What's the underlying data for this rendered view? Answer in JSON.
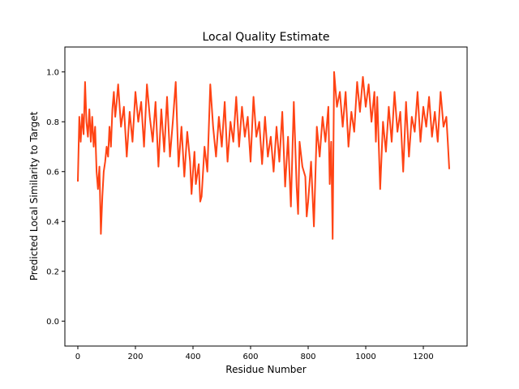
{
  "chart_data": {
    "type": "line",
    "title": "Local Quality Estimate",
    "xlabel": "Residue Number",
    "ylabel": "Predicted Local Similarity to Target",
    "xlim": [
      -45,
      1352
    ],
    "ylim": [
      -0.1,
      1.1
    ],
    "xticks": [
      0,
      200,
      400,
      600,
      800,
      1000,
      1200
    ],
    "yticks": [
      0.0,
      0.2,
      0.4,
      0.6,
      0.8,
      1.0
    ],
    "xtick_labels": [
      "0",
      "200",
      "400",
      "600",
      "800",
      "1000",
      "1200"
    ],
    "ytick_labels": [
      "0.0",
      "0.2",
      "0.4",
      "0.6",
      "0.8",
      "1.0"
    ],
    "grid": false,
    "legend": "none",
    "series": [
      {
        "color": "#ff4314",
        "x": [
          0,
          5,
          10,
          15,
          20,
          25,
          30,
          35,
          40,
          45,
          50,
          55,
          60,
          65,
          70,
          75,
          80,
          85,
          90,
          95,
          100,
          105,
          110,
          115,
          120,
          125,
          130,
          135,
          140,
          150,
          160,
          170,
          180,
          190,
          200,
          210,
          220,
          230,
          240,
          250,
          260,
          270,
          280,
          290,
          300,
          310,
          320,
          330,
          340,
          350,
          360,
          370,
          380,
          390,
          395,
          400,
          405,
          410,
          420,
          425,
          430,
          440,
          450,
          460,
          470,
          480,
          490,
          500,
          510,
          520,
          530,
          540,
          550,
          560,
          570,
          580,
          590,
          600,
          610,
          620,
          630,
          640,
          650,
          660,
          670,
          680,
          690,
          700,
          710,
          720,
          730,
          740,
          750,
          760,
          765,
          770,
          780,
          790,
          795,
          800,
          810,
          820,
          830,
          840,
          850,
          860,
          870,
          875,
          880,
          885,
          890,
          900,
          910,
          920,
          930,
          940,
          950,
          960,
          970,
          980,
          990,
          1000,
          1010,
          1020,
          1030,
          1035,
          1040,
          1050,
          1060,
          1070,
          1080,
          1090,
          1100,
          1110,
          1120,
          1130,
          1140,
          1150,
          1160,
          1170,
          1180,
          1190,
          1200,
          1210,
          1220,
          1230,
          1240,
          1250,
          1260,
          1270,
          1280,
          1285,
          1290
        ],
        "y": [
          0.56,
          0.82,
          0.72,
          0.83,
          0.75,
          0.96,
          0.8,
          0.74,
          0.85,
          0.72,
          0.82,
          0.7,
          0.78,
          0.6,
          0.53,
          0.62,
          0.35,
          0.5,
          0.6,
          0.64,
          0.7,
          0.66,
          0.78,
          0.7,
          0.85,
          0.92,
          0.82,
          0.88,
          0.95,
          0.78,
          0.86,
          0.66,
          0.84,
          0.72,
          0.92,
          0.8,
          0.88,
          0.7,
          0.95,
          0.82,
          0.72,
          0.88,
          0.62,
          0.85,
          0.68,
          0.9,
          0.66,
          0.8,
          0.96,
          0.62,
          0.78,
          0.58,
          0.76,
          0.64,
          0.51,
          0.6,
          0.68,
          0.55,
          0.63,
          0.48,
          0.5,
          0.7,
          0.6,
          0.95,
          0.78,
          0.66,
          0.82,
          0.7,
          0.88,
          0.64,
          0.8,
          0.72,
          0.9,
          0.7,
          0.86,
          0.74,
          0.82,
          0.64,
          0.9,
          0.74,
          0.8,
          0.63,
          0.82,
          0.66,
          0.74,
          0.6,
          0.78,
          0.64,
          0.84,
          0.54,
          0.74,
          0.46,
          0.88,
          0.54,
          0.43,
          0.72,
          0.62,
          0.58,
          0.42,
          0.48,
          0.64,
          0.38,
          0.78,
          0.66,
          0.82,
          0.72,
          0.86,
          0.55,
          0.72,
          0.33,
          1.0,
          0.86,
          0.92,
          0.78,
          0.92,
          0.7,
          0.84,
          0.76,
          0.96,
          0.84,
          0.98,
          0.86,
          0.95,
          0.8,
          0.92,
          0.72,
          0.9,
          0.53,
          0.8,
          0.68,
          0.86,
          0.72,
          0.92,
          0.76,
          0.84,
          0.6,
          0.88,
          0.66,
          0.82,
          0.76,
          0.92,
          0.72,
          0.86,
          0.78,
          0.9,
          0.74,
          0.84,
          0.72,
          0.92,
          0.78,
          0.82,
          0.72,
          0.61
        ]
      }
    ]
  }
}
